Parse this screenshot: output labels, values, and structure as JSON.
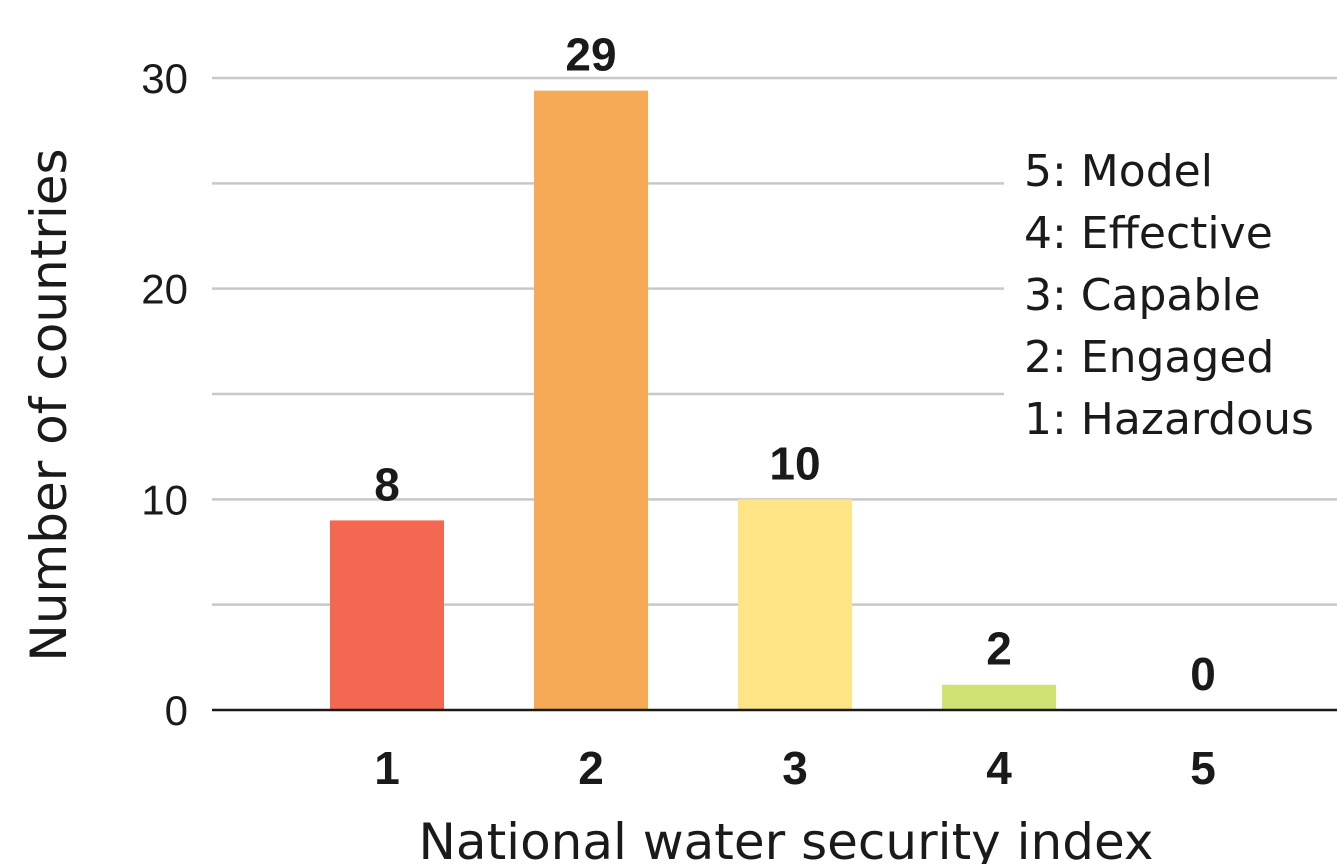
{
  "chart_data": {
    "type": "bar",
    "categories": [
      "1",
      "2",
      "3",
      "4",
      "5"
    ],
    "values": [
      8,
      29,
      10,
      2,
      0
    ],
    "bar_heights": [
      9,
      29.4,
      10,
      1.2,
      0
    ],
    "data_labels": [
      "8",
      "29",
      "10",
      "2",
      "0"
    ],
    "colors": [
      "#f26851",
      "#f7aa55",
      "#fde585",
      "#d1e274",
      "#ffffff"
    ],
    "title": "",
    "xlabel": "National water security index",
    "ylabel": "Number of countries",
    "ylim": [
      0,
      30
    ],
    "yticks": [
      0,
      10,
      20,
      30
    ],
    "ytick_labels": [
      "0",
      "10",
      "20",
      "30"
    ],
    "grid": true,
    "legend": {
      "placement": "top-right",
      "entries": [
        "5: Model",
        "4: Effective",
        "3: Capable",
        "2: Engaged",
        "1: Hazardous"
      ]
    }
  }
}
